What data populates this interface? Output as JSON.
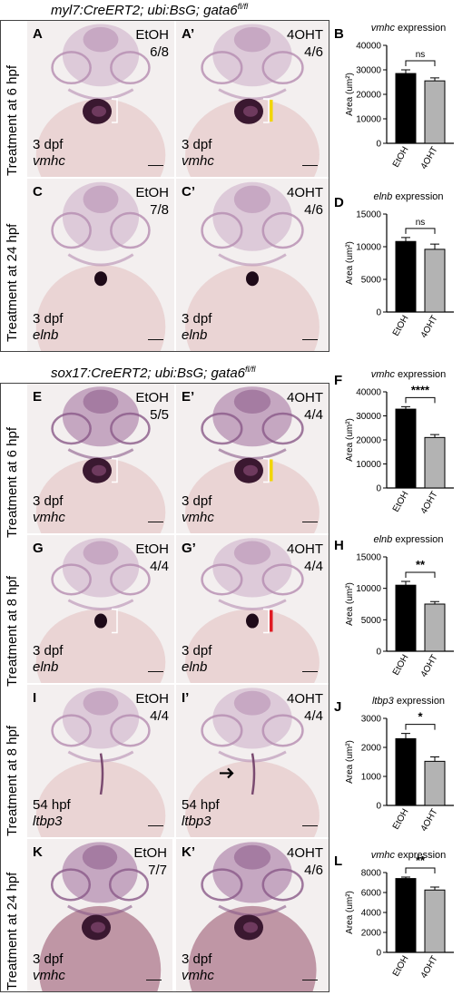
{
  "top_section": {
    "genotype_base": "myl7:CreERT2; ubi:BsG; gata6",
    "genotype_sup": "fl/fl",
    "rows": [
      {
        "label": "Treatment at 6 hpf"
      },
      {
        "label": "Treatment at 24 hpf"
      }
    ]
  },
  "bottom_section": {
    "genotype_base": "sox17:CreERT2; ubi:BsG; gata6",
    "genotype_sup": "fl/fl",
    "rows": [
      {
        "label": "Treatment at 6 hpf"
      },
      {
        "label": "Treatment at 8 hpf"
      },
      {
        "label": "Treatment at 8 hpf"
      },
      {
        "label": "Treatment at 24 hpf"
      }
    ]
  },
  "panels": {
    "A": {
      "label": "A",
      "treatment": "EtOH",
      "ratio": "6/8",
      "stage": "3 dpf",
      "gene": "vmhc"
    },
    "A2": {
      "label": "A’",
      "treatment": "4OHT",
      "ratio": "4/6",
      "stage": "3 dpf",
      "gene": "vmhc"
    },
    "C": {
      "label": "C",
      "treatment": "EtOH",
      "ratio": "7/8",
      "stage": "3 dpf",
      "gene": "elnb"
    },
    "C2": {
      "label": "C’",
      "treatment": "4OHT",
      "ratio": "4/6",
      "stage": "3 dpf",
      "gene": "elnb"
    },
    "E": {
      "label": "E",
      "treatment": "EtOH",
      "ratio": "5/5",
      "stage": "3 dpf",
      "gene": "vmhc"
    },
    "E2": {
      "label": "E’",
      "treatment": "4OHT",
      "ratio": "4/4",
      "stage": "3 dpf",
      "gene": "vmhc"
    },
    "G": {
      "label": "G",
      "treatment": "EtOH",
      "ratio": "4/4",
      "stage": "3 dpf",
      "gene": "elnb"
    },
    "G2": {
      "label": "G’",
      "treatment": "4OHT",
      "ratio": "4/4",
      "stage": "3 dpf",
      "gene": "elnb"
    },
    "I": {
      "label": "I",
      "treatment": "EtOH",
      "ratio": "4/4",
      "stage": "54 hpf",
      "gene": "ltbp3"
    },
    "I2": {
      "label": "I’",
      "treatment": "4OHT",
      "ratio": "4/4",
      "stage": "54 hpf",
      "gene": "ltbp3"
    },
    "K": {
      "label": "K",
      "treatment": "EtOH",
      "ratio": "7/7",
      "stage": "3 dpf",
      "gene": "vmhc"
    },
    "K2": {
      "label": "K’",
      "treatment": "4OHT",
      "ratio": "4/6",
      "stage": "3 dpf",
      "gene": "vmhc"
    }
  },
  "chart_data": [
    {
      "panel": "B",
      "type": "bar",
      "title": "vmhc expression",
      "ylabel": "Area (um²)",
      "categories": [
        "EtOH",
        "4OHT"
      ],
      "values": [
        28500,
        25500
      ],
      "errors": [
        1500,
        1200
      ],
      "ylim": [
        0,
        40000
      ],
      "yticks": [
        "0",
        "10000",
        "20000",
        "30000",
        "40000"
      ],
      "significance": "ns",
      "colors": [
        "#000000",
        "#b3b3b3"
      ]
    },
    {
      "panel": "D",
      "type": "bar",
      "title": "elnb expression",
      "ylabel": "Area (um²)",
      "categories": [
        "EtOH",
        "4OHT"
      ],
      "values": [
        10800,
        9600
      ],
      "errors": [
        600,
        800
      ],
      "ylim": [
        0,
        15000
      ],
      "yticks": [
        "0",
        "5000",
        "10000",
        "15000"
      ],
      "significance": "ns",
      "colors": [
        "#000000",
        "#b3b3b3"
      ]
    },
    {
      "panel": "F",
      "type": "bar",
      "title": "vmhc expression",
      "ylabel": "Area (um²)",
      "categories": [
        "EtOH",
        "4OHT"
      ],
      "values": [
        32800,
        21000
      ],
      "errors": [
        1000,
        1200
      ],
      "ylim": [
        0,
        40000
      ],
      "yticks": [
        "0",
        "10000",
        "20000",
        "30000",
        "40000"
      ],
      "significance": "****",
      "colors": [
        "#000000",
        "#b3b3b3"
      ]
    },
    {
      "panel": "H",
      "type": "bar",
      "title": "elnb expression",
      "ylabel": "Area (um²)",
      "categories": [
        "EtOH",
        "4OHT"
      ],
      "values": [
        10500,
        7500
      ],
      "errors": [
        600,
        400
      ],
      "ylim": [
        0,
        15000
      ],
      "yticks": [
        "0",
        "5000",
        "10000",
        "15000"
      ],
      "significance": "**",
      "colors": [
        "#000000",
        "#b3b3b3"
      ]
    },
    {
      "panel": "J",
      "type": "bar",
      "title": "ltbp3 expression",
      "ylabel": "Area (um²)",
      "categories": [
        "EtOH",
        "4OHT"
      ],
      "values": [
        2300,
        1520
      ],
      "errors": [
        180,
        150
      ],
      "ylim": [
        0,
        3000
      ],
      "yticks": [
        "0",
        "1000",
        "2000",
        "3000"
      ],
      "significance": "*",
      "colors": [
        "#000000",
        "#b3b3b3"
      ]
    },
    {
      "panel": "L",
      "type": "bar",
      "title": "vmhc expression",
      "ylabel": "Area (um²)",
      "categories": [
        "EtOH",
        "4OHT"
      ],
      "values": [
        7400,
        6250
      ],
      "errors": [
        150,
        300
      ],
      "ylim": [
        0,
        8000
      ],
      "yticks": [
        "0",
        "2000",
        "4000",
        "6000",
        "8000"
      ],
      "significance": "**",
      "colors": [
        "#000000",
        "#b3b3b3"
      ]
    }
  ]
}
